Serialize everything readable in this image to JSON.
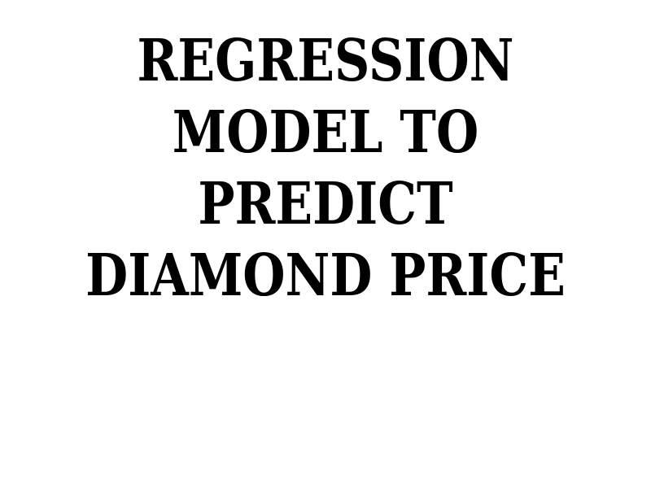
{
  "title": {
    "lines": [
      "REGRESSION",
      "MODEL TO",
      "PREDICT",
      "DIAMOND PRICE"
    ]
  },
  "colors": {
    "background": "#ffffff",
    "text": "#000000"
  }
}
